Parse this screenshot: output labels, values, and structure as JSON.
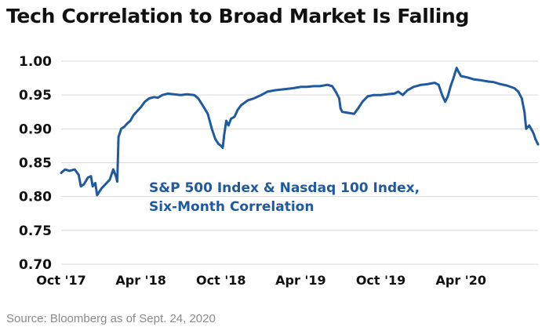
{
  "chart_data": {
    "type": "line",
    "title": "Tech Correlation to Broad Market Is Falling",
    "source": "Source: Bloomberg as of Sept. 24, 2020",
    "annotation": [
      "S&P 500 Index & Nasdaq 100 Index,",
      "Six-Month Correlation"
    ],
    "ylim": [
      0.7,
      1.0
    ],
    "yticks": [
      1.0,
      0.95,
      0.9,
      0.85,
      0.8,
      0.75,
      0.7
    ],
    "ytick_labels": [
      "1.00",
      "0.95",
      "0.90",
      "0.85",
      "0.80",
      "0.75",
      "0.70"
    ],
    "xlim": [
      "2017-10-01",
      "2020-09-24"
    ],
    "xticks": [
      "2017-10-01",
      "2018-04-01",
      "2018-10-01",
      "2019-04-01",
      "2019-10-01",
      "2020-04-01"
    ],
    "xtick_labels": [
      "Oct '17",
      "Apr '18",
      "Oct '18",
      "Apr '19",
      "Oct '19",
      "Apr '20"
    ],
    "grid": true,
    "legend": "none",
    "line_color": "#1f5aa0",
    "series": [
      {
        "points": [
          [
            "2017-10-01",
            0.835
          ],
          [
            "2017-10-10",
            0.84
          ],
          [
            "2017-10-20",
            0.838
          ],
          [
            "2017-11-01",
            0.84
          ],
          [
            "2017-11-10",
            0.832
          ],
          [
            "2017-11-15",
            0.815
          ],
          [
            "2017-11-22",
            0.818
          ],
          [
            "2017-12-01",
            0.828
          ],
          [
            "2017-12-08",
            0.83
          ],
          [
            "2017-12-12",
            0.815
          ],
          [
            "2017-12-18",
            0.82
          ],
          [
            "2017-12-22",
            0.802
          ],
          [
            "2018-01-01",
            0.812
          ],
          [
            "2018-01-10",
            0.818
          ],
          [
            "2018-01-20",
            0.825
          ],
          [
            "2018-01-28",
            0.84
          ],
          [
            "2018-02-03",
            0.83
          ],
          [
            "2018-02-06",
            0.822
          ],
          [
            "2018-02-09",
            0.888
          ],
          [
            "2018-02-15",
            0.9
          ],
          [
            "2018-02-22",
            0.903
          ],
          [
            "2018-03-01",
            0.908
          ],
          [
            "2018-03-08",
            0.912
          ],
          [
            "2018-03-15",
            0.92
          ],
          [
            "2018-03-22",
            0.925
          ],
          [
            "2018-04-01",
            0.932
          ],
          [
            "2018-04-10",
            0.94
          ],
          [
            "2018-04-20",
            0.945
          ],
          [
            "2018-05-01",
            0.947
          ],
          [
            "2018-05-10",
            0.946
          ],
          [
            "2018-05-20",
            0.95
          ],
          [
            "2018-06-01",
            0.952
          ],
          [
            "2018-06-15",
            0.951
          ],
          [
            "2018-07-01",
            0.95
          ],
          [
            "2018-07-15",
            0.951
          ],
          [
            "2018-08-01",
            0.95
          ],
          [
            "2018-08-10",
            0.945
          ],
          [
            "2018-08-20",
            0.935
          ],
          [
            "2018-09-01",
            0.922
          ],
          [
            "2018-09-10",
            0.9
          ],
          [
            "2018-09-18",
            0.885
          ],
          [
            "2018-09-25",
            0.878
          ],
          [
            "2018-10-01",
            0.875
          ],
          [
            "2018-10-05",
            0.872
          ],
          [
            "2018-10-08",
            0.89
          ],
          [
            "2018-10-13",
            0.912
          ],
          [
            "2018-10-18",
            0.905
          ],
          [
            "2018-10-24",
            0.915
          ],
          [
            "2018-11-01",
            0.918
          ],
          [
            "2018-11-08",
            0.928
          ],
          [
            "2018-11-16",
            0.935
          ],
          [
            "2018-12-01",
            0.942
          ],
          [
            "2018-12-15",
            0.945
          ],
          [
            "2019-01-01",
            0.95
          ],
          [
            "2019-01-15",
            0.955
          ],
          [
            "2019-02-01",
            0.957
          ],
          [
            "2019-02-15",
            0.958
          ],
          [
            "2019-03-01",
            0.959
          ],
          [
            "2019-03-15",
            0.96
          ],
          [
            "2019-04-01",
            0.962
          ],
          [
            "2019-04-15",
            0.962
          ],
          [
            "2019-05-01",
            0.963
          ],
          [
            "2019-05-15",
            0.963
          ],
          [
            "2019-06-01",
            0.965
          ],
          [
            "2019-06-12",
            0.963
          ],
          [
            "2019-06-20",
            0.955
          ],
          [
            "2019-06-28",
            0.945
          ],
          [
            "2019-07-01",
            0.93
          ],
          [
            "2019-07-05",
            0.925
          ],
          [
            "2019-07-15",
            0.924
          ],
          [
            "2019-07-25",
            0.923
          ],
          [
            "2019-08-01",
            0.922
          ],
          [
            "2019-08-10",
            0.93
          ],
          [
            "2019-08-20",
            0.94
          ],
          [
            "2019-09-01",
            0.948
          ],
          [
            "2019-09-15",
            0.95
          ],
          [
            "2019-10-01",
            0.95
          ],
          [
            "2019-10-15",
            0.951
          ],
          [
            "2019-11-01",
            0.952
          ],
          [
            "2019-11-10",
            0.955
          ],
          [
            "2019-11-20",
            0.95
          ],
          [
            "2019-12-01",
            0.957
          ],
          [
            "2019-12-15",
            0.962
          ],
          [
            "2020-01-01",
            0.965
          ],
          [
            "2020-01-15",
            0.966
          ],
          [
            "2020-02-01",
            0.968
          ],
          [
            "2020-02-10",
            0.965
          ],
          [
            "2020-02-18",
            0.95
          ],
          [
            "2020-02-25",
            0.94
          ],
          [
            "2020-03-02",
            0.948
          ],
          [
            "2020-03-08",
            0.962
          ],
          [
            "2020-03-15",
            0.975
          ],
          [
            "2020-03-22",
            0.99
          ],
          [
            "2020-03-26",
            0.985
          ],
          [
            "2020-04-01",
            0.978
          ],
          [
            "2020-04-15",
            0.976
          ],
          [
            "2020-05-01",
            0.973
          ],
          [
            "2020-05-15",
            0.972
          ],
          [
            "2020-06-01",
            0.97
          ],
          [
            "2020-06-15",
            0.969
          ],
          [
            "2020-07-01",
            0.966
          ],
          [
            "2020-07-15",
            0.964
          ],
          [
            "2020-08-01",
            0.96
          ],
          [
            "2020-08-10",
            0.955
          ],
          [
            "2020-08-18",
            0.945
          ],
          [
            "2020-08-24",
            0.925
          ],
          [
            "2020-08-28",
            0.9
          ],
          [
            "2020-09-04",
            0.905
          ],
          [
            "2020-09-10",
            0.898
          ],
          [
            "2020-09-14",
            0.893
          ],
          [
            "2020-09-18",
            0.885
          ],
          [
            "2020-09-24",
            0.877
          ]
        ]
      }
    ]
  }
}
